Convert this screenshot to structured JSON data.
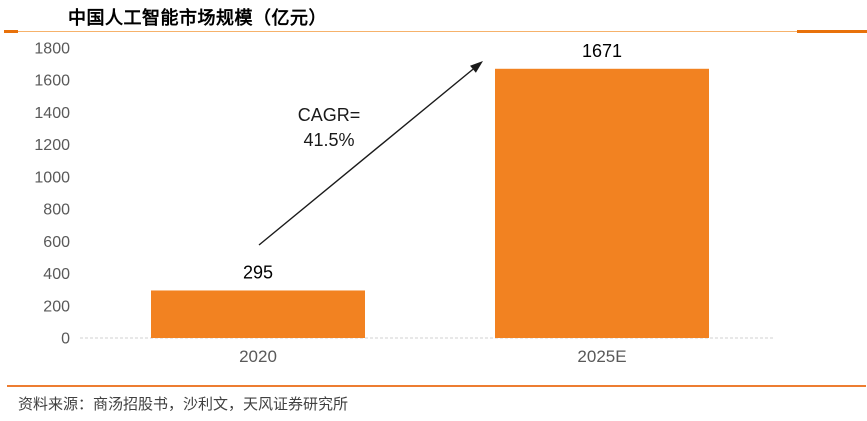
{
  "header": {
    "title": "中国人工智能市场规模（亿元）"
  },
  "chart_data": {
    "type": "bar",
    "title": "中国人工智能市场规模（亿元）",
    "categories": [
      "2020",
      "2025E"
    ],
    "values": [
      295,
      1671
    ],
    "value_labels": [
      "295",
      "1671"
    ],
    "xlabel": "",
    "ylabel": "",
    "ylim": [
      0,
      1800
    ],
    "yticks": [
      0,
      200,
      400,
      600,
      800,
      1000,
      1200,
      1400,
      1600,
      1800
    ],
    "grid": false,
    "legend": false,
    "bar_color": "#F28221",
    "annotation": {
      "type": "growth-arrow",
      "text_lines": [
        "CAGR=",
        "41.5%"
      ]
    }
  },
  "footer": {
    "source": "资料来源：商汤招股书，沙利文，天风证券研究所"
  },
  "colors": {
    "bar_orange": "#F28221",
    "divider_orange": "#ED7D31",
    "divider_light_orange": "#F6B26B",
    "divider_dark_orange": "#E8710A",
    "axis_text_gray": "#595959",
    "baseline_gray": "#D9D9D9",
    "annotation_black": "#1A1A1A",
    "source_text_gray": "#404040"
  }
}
